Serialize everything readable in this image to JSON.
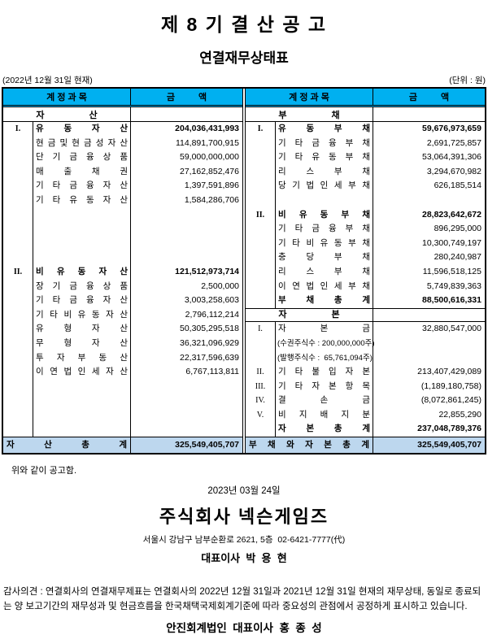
{
  "title": "제 8 기 결 산 공 고",
  "subtitle": "연결재무상태표",
  "meta": {
    "as_of": "(2022년 12월 31일 현재)",
    "unit": "(단위 : 원)"
  },
  "colors": {
    "header_bg": "#00B0F0",
    "total_bg": "#BDD7EE"
  },
  "table": {
    "header": {
      "account": "계 정 과 목",
      "amount": "금 액"
    },
    "left": {
      "section": "자 산",
      "rows": [
        {
          "num": "I.",
          "label": "유 동 자 산",
          "amount": "204,036,431,993"
        },
        {
          "num": "",
          "label": "현 금 및 현 금 성 자 산",
          "amount": "114,891,700,915"
        },
        {
          "num": "",
          "label": "단 기 금 융 상 품",
          "amount": "59,000,000,000"
        },
        {
          "num": "",
          "label": "매 출 채 권",
          "amount": "27,162,852,476"
        },
        {
          "num": "",
          "label": "기 타 금 융 자 산",
          "amount": "1,397,591,896"
        },
        {
          "num": "",
          "label": "기 타 유 동 자 산",
          "amount": "1,584,286,706"
        },
        {
          "num": "",
          "label": "",
          "amount": ""
        },
        {
          "num": "",
          "label": "",
          "amount": ""
        },
        {
          "num": "",
          "label": "",
          "amount": ""
        },
        {
          "num": "",
          "label": "",
          "amount": ""
        },
        {
          "num": "II.",
          "label": "비 유 동 자 산",
          "amount": "121,512,973,714"
        },
        {
          "num": "",
          "label": "장 기 금 융 상 품",
          "amount": "2,500,000"
        },
        {
          "num": "",
          "label": "기 타 금 융 자 산",
          "amount": "3,003,258,603"
        },
        {
          "num": "",
          "label": "기 타 비 유 동 자 산",
          "amount": "2,796,112,214"
        },
        {
          "num": "",
          "label": "유 형 자 산",
          "amount": "50,305,295,518"
        },
        {
          "num": "",
          "label": "무 형 자 산",
          "amount": "36,321,096,929"
        },
        {
          "num": "",
          "label": "투 자 부 동 산",
          "amount": "22,317,596,639"
        },
        {
          "num": "",
          "label": "이 연 법 인 세 자 산",
          "amount": "6,767,113,811"
        },
        {
          "num": "",
          "label": "",
          "amount": ""
        },
        {
          "num": "",
          "label": "",
          "amount": ""
        },
        {
          "num": "",
          "label": "",
          "amount": ""
        },
        {
          "num": "",
          "label": "",
          "amount": ""
        }
      ],
      "total": {
        "label": "자 산 총 계",
        "amount": "325,549,405,707"
      }
    },
    "right": {
      "section": "부 채",
      "capital_section": "자 본",
      "rows": [
        {
          "num": "I.",
          "label": "유 동 부 채",
          "amount": "59,676,973,659"
        },
        {
          "num": "",
          "label": "기 타 금 융 부 채",
          "amount": "2,691,725,857"
        },
        {
          "num": "",
          "label": "기 타 유 동 부 채",
          "amount": "53,064,391,306"
        },
        {
          "num": "",
          "label": "리 스 부 채",
          "amount": "3,294,670,982"
        },
        {
          "num": "",
          "label": "당 기 법 인 세 부 채",
          "amount": "626,185,514"
        },
        {
          "num": "",
          "label": "",
          "amount": ""
        },
        {
          "num": "II.",
          "label": "비 유 동 부 채",
          "amount": "28,823,642,672"
        },
        {
          "num": "",
          "label": "기 타 금 융 부 채",
          "amount": "896,295,000"
        },
        {
          "num": "",
          "label": "기 타 비 유 동 부 채",
          "amount": "10,300,749,197"
        },
        {
          "num": "",
          "label": "충 당 부 채",
          "amount": "280,240,987"
        },
        {
          "num": "",
          "label": "리 스 부 채",
          "amount": "11,596,518,125"
        },
        {
          "num": "",
          "label": "이 연 법 인 세 부 채",
          "amount": "5,749,839,363"
        },
        {
          "num": "",
          "label": "부 채 총 계",
          "amount": "88,500,616,331"
        },
        {
          "num": "",
          "label": "자 본",
          "amount": ""
        },
        {
          "num": "I.",
          "label": "자 본 금",
          "amount": "32,880,547,000"
        },
        {
          "num": "",
          "label": "(수권주식수 : 200,000,000주)",
          "amount": ""
        },
        {
          "num": "",
          "label": "(발행주식수 :  65,761,094주)",
          "amount": ""
        },
        {
          "num": "II.",
          "label": "기 타 불 입 자 본",
          "amount": "213,407,429,089"
        },
        {
          "num": "III.",
          "label": "기 타 자 본 항 목",
          "amount": "(1,189,180,758)"
        },
        {
          "num": "IV.",
          "label": "결 손 금",
          "amount": "(8,072,861,245)"
        },
        {
          "num": "V.",
          "label": "비 지 배 지 분",
          "amount": "22,855,290"
        },
        {
          "num": "",
          "label": "자 본 총 계",
          "amount": "237,048,789,376"
        }
      ],
      "total": {
        "label": "부 채 와 자 본 총 계",
        "amount": "325,549,405,707"
      }
    }
  },
  "footer": {
    "notice": "위와 같이 공고함.",
    "date": "2023년 03월 24일",
    "company": "주식회사 넥슨게임즈",
    "address": "서울시 강남구 남부순환로 2621, 5층  02-6421-7777(代)",
    "ceo": "대표이사  박  용  현",
    "audit_opinion": "감사의견 :  연결회사의 연결재무제표는 연결회사의 2022년 12월 31일과 2021년 12월 31일 현재의 재무상태, 동일로 종료되는 양 보고기간의 재무성과 및 현금흐름을 한국채택국제회계기준에 따라 중요성의 관점에서 공정하게 표시하고 있습니다.",
    "auditor": "안진회계법인  대표이사  홍  종  성"
  }
}
